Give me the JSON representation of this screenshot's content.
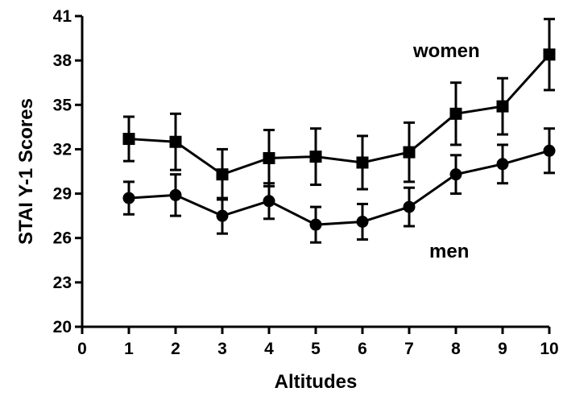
{
  "chart_data": {
    "type": "line",
    "xlabel": "Altitudes",
    "ylabel": "STAI Y-1 Scores",
    "xlim": [
      0,
      10
    ],
    "ylim": [
      20,
      41
    ],
    "xticks": [
      0,
      1,
      2,
      3,
      4,
      5,
      6,
      7,
      8,
      9,
      10
    ],
    "yticks": [
      20,
      23,
      26,
      29,
      32,
      35,
      38,
      41
    ],
    "grid": false,
    "x": [
      1,
      2,
      3,
      4,
      5,
      6,
      7,
      8,
      9,
      10
    ],
    "series": [
      {
        "name": "women",
        "marker": "square",
        "values": [
          32.7,
          32.5,
          30.3,
          31.4,
          31.5,
          31.1,
          31.8,
          34.4,
          34.9,
          38.4
        ],
        "err": [
          1.5,
          1.9,
          1.7,
          1.9,
          1.9,
          1.8,
          2.0,
          2.1,
          1.9,
          2.4
        ]
      },
      {
        "name": "men",
        "marker": "circle",
        "values": [
          28.7,
          28.9,
          27.5,
          28.5,
          26.9,
          27.1,
          28.1,
          30.3,
          31.0,
          31.9
        ],
        "err": [
          1.1,
          1.4,
          1.2,
          1.2,
          1.2,
          1.2,
          1.3,
          1.3,
          1.3,
          1.5
        ]
      }
    ]
  }
}
